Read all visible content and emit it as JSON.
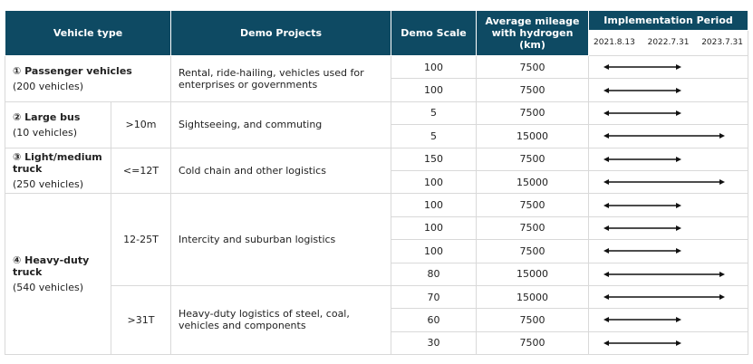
{
  "headers": {
    "vehicle_type": "Vehicle type",
    "demo_projects": "Demo Projects",
    "demo_scale": "Demo Scale",
    "avg_mileage": "Average mileage with hydrogen (km)",
    "impl_period": "Implementation Period",
    "dates": [
      "2021.8.13",
      "2022.7.31",
      "2023.7.31"
    ]
  },
  "groups": [
    {
      "type_name": "① Passenger vehicles",
      "type_count": "(200 vehicles)",
      "subgroups": [
        {
          "size": "",
          "project": "Rental, ride-hailing, vehicles used for enterprises or governments",
          "rows": [
            {
              "scale": "100",
              "mileage": "7500",
              "period_end": "2022.7.31"
            },
            {
              "scale": "100",
              "mileage": "7500",
              "period_end": "2022.7.31"
            }
          ]
        }
      ]
    },
    {
      "type_name": "② Large bus",
      "type_count": "(10 vehicles)",
      "subgroups": [
        {
          "size": ">10m",
          "project": "Sightseeing, and commuting",
          "rows": [
            {
              "scale": "5",
              "mileage": "7500",
              "period_end": "2022.7.31"
            },
            {
              "scale": "5",
              "mileage": "15000",
              "period_end": "2023.7.31"
            }
          ]
        }
      ]
    },
    {
      "type_name": "③ Light/medium truck",
      "type_count": "(250 vehicles)",
      "subgroups": [
        {
          "size": "<=12T",
          "project": "Cold chain and other logistics",
          "rows": [
            {
              "scale": "150",
              "mileage": "7500",
              "period_end": "2022.7.31"
            },
            {
              "scale": "100",
              "mileage": "15000",
              "period_end": "2023.7.31"
            }
          ]
        }
      ]
    },
    {
      "type_name": "④ Heavy-duty truck",
      "type_count": "(540 vehicles)",
      "subgroups": [
        {
          "size": "12-25T",
          "project": "Intercity and suburban logistics",
          "rows": [
            {
              "scale": "100",
              "mileage": "7500",
              "period_end": "2022.7.31"
            },
            {
              "scale": "100",
              "mileage": "7500",
              "period_end": "2022.7.31"
            },
            {
              "scale": "100",
              "mileage": "7500",
              "period_end": "2022.7.31"
            },
            {
              "scale": "80",
              "mileage": "15000",
              "period_end": "2023.7.31"
            }
          ]
        },
        {
          "size": ">31T",
          "project": "Heavy-duty logistics of steel, coal, vehicles and components",
          "rows": [
            {
              "scale": "70",
              "mileage": "15000",
              "period_end": "2023.7.31"
            },
            {
              "scale": "60",
              "mileage": "7500",
              "period_end": "2022.7.31"
            },
            {
              "scale": "30",
              "mileage": "7500",
              "period_end": "2022.7.31"
            }
          ]
        }
      ]
    }
  ]
}
